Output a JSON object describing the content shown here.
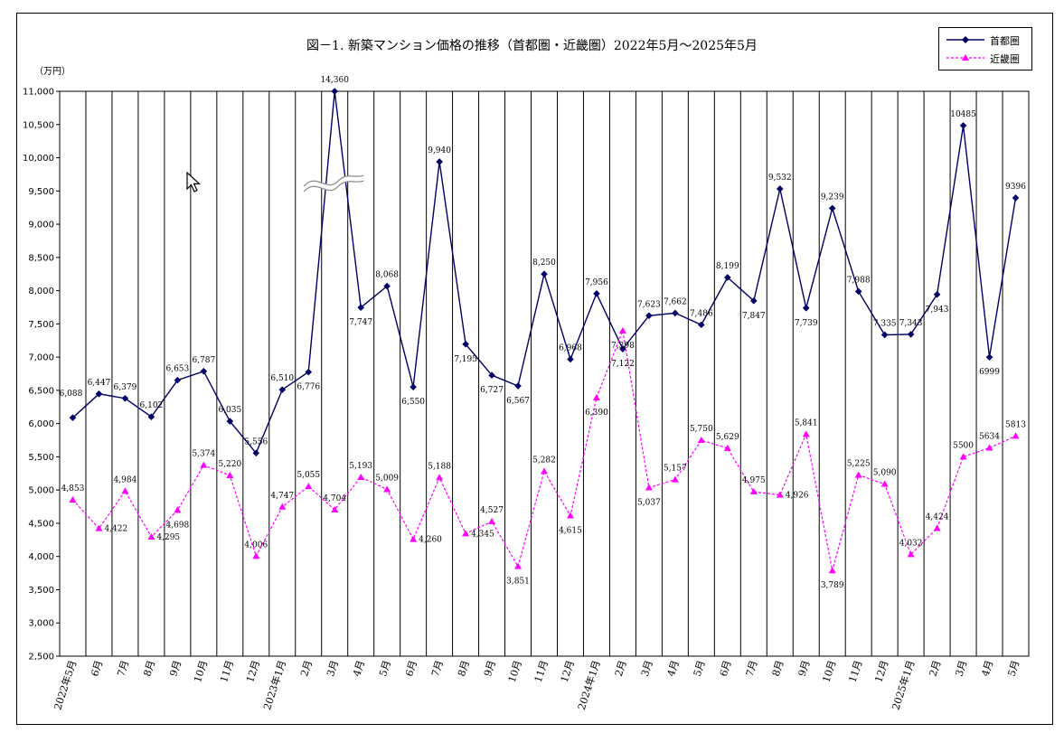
{
  "title": "図－1. 新築マンション価格の推移（首都圏・近畿圏）2022年5月～2025年5月",
  "unit_label": "（万円）",
  "chart_data": {
    "type": "line",
    "categories": [
      "2022年5月",
      "6月",
      "7月",
      "8月",
      "9月",
      "10月",
      "11月",
      "12月",
      "2023年1月",
      "2月",
      "3月",
      "4月",
      "5月",
      "6月",
      "7月",
      "8月",
      "9月",
      "10月",
      "11月",
      "12月",
      "2024年1月",
      "2月",
      "3月",
      "4月",
      "5月",
      "6月",
      "7月",
      "8月",
      "9月",
      "10月",
      "11月",
      "12月",
      "2025年1月",
      "2月",
      "3月",
      "4月",
      "5月"
    ],
    "ylim": [
      2500,
      11000
    ],
    "yticks": [
      "2,500",
      "3,000",
      "3,500",
      "4,000",
      "4,500",
      "5,000",
      "5,500",
      "6,000",
      "6,500",
      "7,000",
      "7,500",
      "8,000",
      "8,500",
      "9,000",
      "9,500",
      "10,000",
      "10,500",
      "11,000"
    ],
    "grid": "vertical",
    "legend_position": "top-right",
    "axis_break_marker": true,
    "series": [
      {
        "name": "首都圏",
        "color": "#000066",
        "style": "solid",
        "marker": "diamond",
        "values": [
          6088,
          6447,
          6379,
          6102,
          6653,
          6787,
          6035,
          5556,
          6510,
          6776,
          14360,
          7747,
          8068,
          6550,
          9940,
          7195,
          6727,
          6567,
          8250,
          6968,
          7956,
          7122,
          7623,
          7662,
          7486,
          8199,
          7847,
          9532,
          7739,
          9239,
          7988,
          7335,
          7343,
          7943,
          10485,
          6999,
          9396
        ],
        "labels": [
          "6,088",
          "6,447",
          "6,379",
          "6,102",
          "6,653",
          "6,787",
          "6,035",
          "5,556",
          "6,510",
          "6,776",
          "14,360",
          "7,747",
          "8,068",
          "6,550",
          "9,940",
          "7,195",
          "6,727",
          "6,567",
          "8,250",
          "6,968",
          "7,956",
          "7,122",
          "7,623",
          "7,662",
          "7,486",
          "8,199",
          "7,847",
          "9,532",
          "7,739",
          "9,239",
          "7,988",
          "7,335",
          "7,343",
          "7,943",
          "10485",
          "6999",
          "9396"
        ]
      },
      {
        "name": "近畿圏",
        "color": "#ff00ff",
        "style": "dashed",
        "marker": "triangle",
        "values": [
          4853,
          4422,
          4984,
          4295,
          4698,
          5374,
          5220,
          4006,
          4747,
          5055,
          4704,
          5193,
          5009,
          4260,
          5188,
          4345,
          4527,
          3851,
          5282,
          4615,
          6390,
          7398,
          5037,
          5157,
          5750,
          5629,
          4975,
          4926,
          5841,
          3789,
          5225,
          5090,
          4032,
          4424,
          5500,
          5634,
          5813
        ],
        "labels": [
          "4,853",
          "4,422",
          "4,984",
          "4,295",
          "4,698",
          "5,374",
          "5,220",
          "4,006",
          "4,747",
          "5,055",
          "4,704",
          "5,193",
          "5,009",
          "4,260",
          "5,188",
          "4,345",
          "4,527",
          "3,851",
          "5,282",
          "4,615",
          "6,390",
          "7,398",
          "5,037",
          "5,157",
          "5,750",
          "5,629",
          "4,975",
          "4,926",
          "5,841",
          "3,789",
          "5,225",
          "5,090",
          "4,032",
          "4,424",
          "5500",
          "5634",
          "5813"
        ]
      }
    ]
  }
}
